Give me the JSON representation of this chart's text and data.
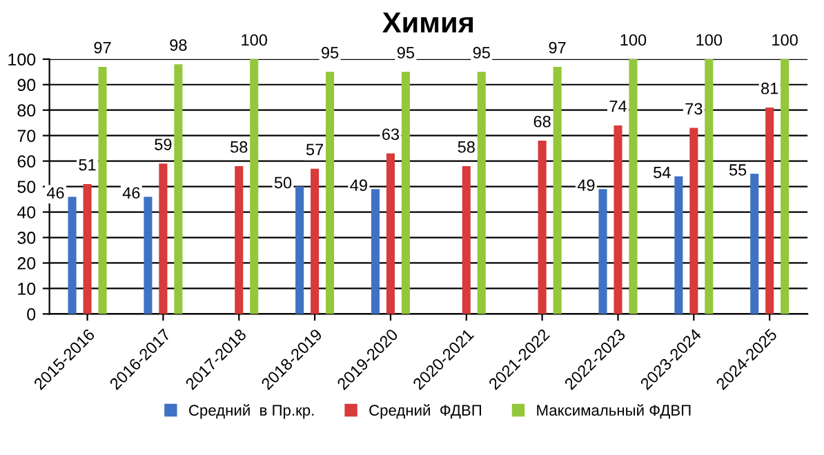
{
  "chart_data": {
    "type": "bar",
    "title": "Химия",
    "categories": [
      "2015-2016",
      "2016-2017",
      "2017-2018",
      "2018-2019",
      "2019-2020",
      "2020-2021",
      "2021-2022",
      "2022-2023",
      "2023-2024",
      "2024-2025"
    ],
    "series": [
      {
        "name": "Средний  в Пр.кр.",
        "color": "#3f72c4",
        "values": [
          46,
          46,
          null,
          50,
          49,
          null,
          null,
          49,
          54,
          55
        ]
      },
      {
        "name": "Средний  ФДВП",
        "color": "#d93a3a",
        "values": [
          51,
          59,
          58,
          57,
          63,
          58,
          68,
          74,
          73,
          81
        ]
      },
      {
        "name": "Максимальный ФДВП",
        "color": "#94c73b",
        "values": [
          97,
          98,
          100,
          95,
          95,
          95,
          97,
          100,
          100,
          100
        ]
      }
    ],
    "ylim": [
      0,
      100
    ],
    "yticks": [
      0,
      10,
      20,
      30,
      40,
      50,
      60,
      70,
      80,
      90,
      100
    ],
    "grid": "y",
    "legend": "bottom",
    "data_labels": true
  }
}
